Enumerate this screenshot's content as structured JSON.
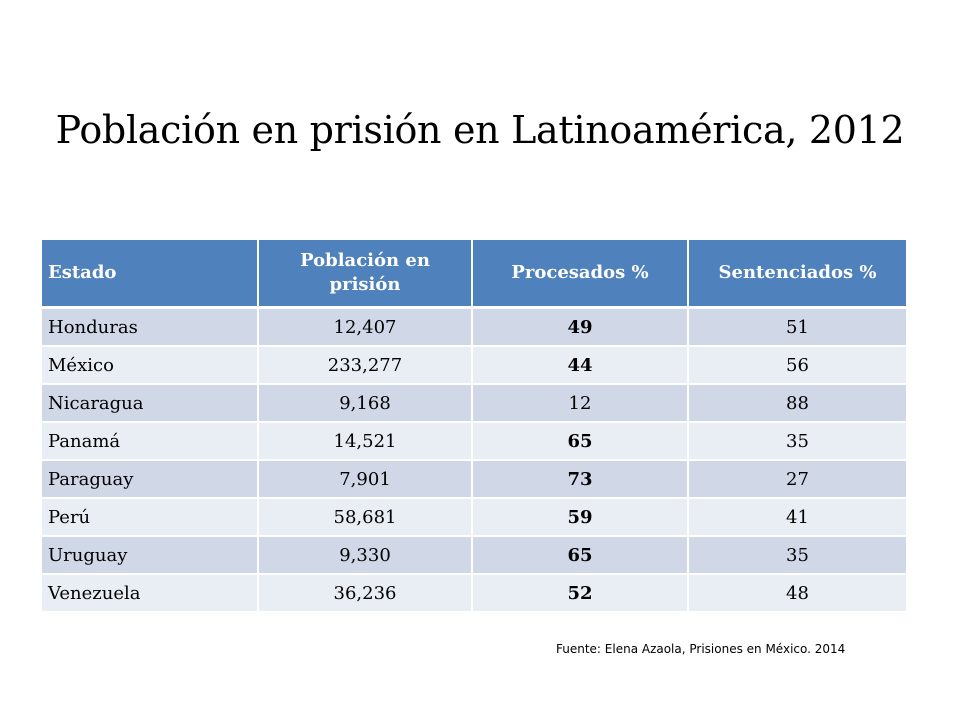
{
  "title": "Población en prisión en Latinoamérica, 2012",
  "table": {
    "headers": [
      "Estado",
      "Población en prisión",
      "Procesados %",
      "Sentenciados %"
    ],
    "rows": [
      [
        "Honduras",
        "12,407",
        "49",
        "51"
      ],
      [
        "México",
        "233,277",
        "44",
        "56"
      ],
      [
        "Nicaragua",
        "9,168",
        "12",
        "88"
      ],
      [
        "Panamá",
        "14,521",
        "65",
        "35"
      ],
      [
        "Paraguay",
        "7,901",
        "73",
        "27"
      ],
      [
        "Perú",
        "58,681",
        "59",
        "41"
      ],
      [
        "Uruguay",
        "9,330",
        "65",
        "35"
      ],
      [
        "Venezuela",
        "36,236",
        "52",
        "48"
      ]
    ],
    "bold_procesados": [
      true,
      true,
      false,
      true,
      true,
      true,
      true,
      true
    ]
  },
  "source": "Fuente: Elena Azaola, Prisiones en México. 2014",
  "colors": {
    "header_bg": "#4f81bd",
    "row_odd": "#d0d8e8",
    "row_even": "#e9edf4"
  }
}
